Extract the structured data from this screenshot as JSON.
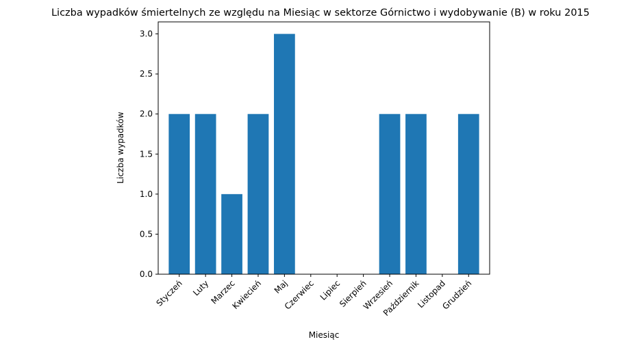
{
  "chart_data": {
    "type": "bar",
    "title": "Liczba wypadków śmiertelnych ze względu na Miesiąc w sektorze Górnictwo i wydobywanie (B)   w roku 2015",
    "xlabel": "Miesiąc",
    "ylabel": "Liczba wypadków",
    "categories": [
      "Styczeń",
      "Luty",
      "Marzec",
      "Kwiecień",
      "Maj",
      "Czerwiec",
      "Lipiec",
      "Sierpień",
      "Wrzesień",
      "Październik",
      "Listopad",
      "Grudzień"
    ],
    "values": [
      2,
      2,
      1,
      2,
      3,
      0,
      0,
      0,
      2,
      2,
      0,
      2
    ],
    "ylim": [
      0,
      3.15
    ],
    "yticks": [
      "0.0",
      "0.5",
      "1.0",
      "1.5",
      "2.0",
      "2.5",
      "3.0"
    ],
    "bar_color": "#1f77b4",
    "grid": false,
    "legend": "none"
  }
}
